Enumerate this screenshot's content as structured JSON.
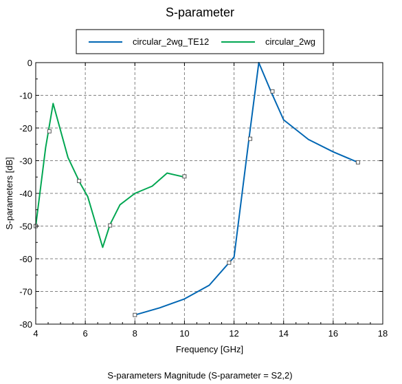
{
  "chart_data": {
    "type": "line",
    "title": "S-parameter",
    "xlabel": "Frequency [GHz]",
    "ylabel": "S-parameters [dB]",
    "footer": "S-parameters Magnitude (S-parameter = S2,2)",
    "xlim": [
      4,
      18
    ],
    "ylim": [
      -80,
      0
    ],
    "xticks": [
      4,
      6,
      8,
      10,
      12,
      14,
      16,
      18
    ],
    "yticks": [
      0,
      -10,
      -20,
      -30,
      -40,
      -50,
      -60,
      -70,
      -80
    ],
    "grid": true,
    "legend_position": "top",
    "series": [
      {
        "name": "circular_2wg_TE12",
        "color": "#0066b3",
        "x": [
          8,
          9,
          10,
          11,
          11.8,
          12,
          12.6,
          13,
          13.5,
          14,
          15,
          16,
          17
        ],
        "y": [
          -77.2,
          -75.0,
          -72.3,
          -68.1,
          -61.2,
          -59.5,
          -23.5,
          0,
          -9.0,
          -17.5,
          -23.5,
          -27.3,
          -30.5
        ],
        "markers": [
          {
            "x": 8,
            "y": -77.2
          },
          {
            "x": 11.8,
            "y": -61.2
          },
          {
            "x": 12.65,
            "y": -23.3
          },
          {
            "x": 13.55,
            "y": -8.8
          },
          {
            "x": 17,
            "y": -30.5
          }
        ]
      },
      {
        "name": "circular_2wg",
        "color": "#00a651",
        "x": [
          4,
          4.4,
          4.7,
          5.3,
          5.8,
          6.1,
          6.7,
          7.0,
          7.4,
          8.0,
          8.7,
          9.3,
          10
        ],
        "y": [
          -50,
          -26,
          -12.5,
          -29,
          -37,
          -41,
          -56.5,
          -49.5,
          -43.5,
          -40,
          -37.8,
          -33.8,
          -35
        ],
        "markers": [
          {
            "x": 4,
            "y": -50
          },
          {
            "x": 4.55,
            "y": -21
          },
          {
            "x": 5.75,
            "y": -36.2
          },
          {
            "x": 7.0,
            "y": -49.8
          },
          {
            "x": 10,
            "y": -34.8
          }
        ]
      }
    ]
  }
}
